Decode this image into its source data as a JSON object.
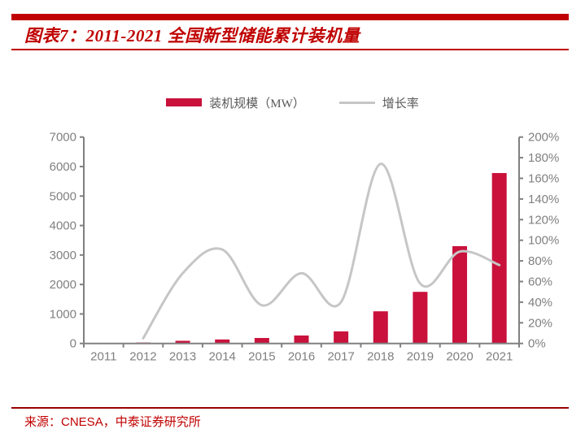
{
  "colors": {
    "title_red": "#C00000",
    "bar_red": "#C9113C",
    "line_gray": "#C6C6C6",
    "axis_gray": "#808080",
    "label_gray": "#808080",
    "legend_text_gray": "#595959",
    "footer_rule_red": "#990000"
  },
  "header": {
    "title": "图表7：2011-2021 全国新型储能累计装机量"
  },
  "legend": {
    "items": [
      {
        "label": "装机规模（MW）",
        "type": "bar"
      },
      {
        "label": "增长率",
        "type": "line"
      }
    ]
  },
  "source": {
    "prefix": "来源：",
    "text": "CNESA，中泰证券研究所"
  },
  "chart_data": {
    "type": "bar",
    "subtype": "bar+line combo, dual axis",
    "categories": [
      "2011",
      "2012",
      "2013",
      "2014",
      "2015",
      "2016",
      "2017",
      "2018",
      "2019",
      "2020",
      "2021"
    ],
    "series": [
      {
        "name": "装机规模（MW）",
        "type": "bar",
        "axis": "left",
        "values": [
          0,
          30,
          90,
          135,
          185,
          270,
          410,
          1090,
          1750,
          3300,
          5780
        ]
      },
      {
        "name": "增长率",
        "type": "line",
        "axis": "right",
        "unit": "%",
        "values": [
          null,
          5,
          68,
          91,
          37,
          68,
          40,
          174,
          58,
          89,
          76
        ]
      }
    ],
    "left_axis": {
      "min": 0,
      "max": 7000,
      "step": 1000,
      "ticks": [
        "0",
        "1000",
        "2000",
        "3000",
        "4000",
        "5000",
        "6000",
        "7000"
      ]
    },
    "right_axis": {
      "min": 0,
      "max": 200,
      "step": 20,
      "ticks": [
        "0%",
        "20%",
        "40%",
        "60%",
        "80%",
        "100%",
        "120%",
        "140%",
        "160%",
        "180%",
        "200%"
      ]
    },
    "grid": false,
    "legend_position": "top-center"
  }
}
